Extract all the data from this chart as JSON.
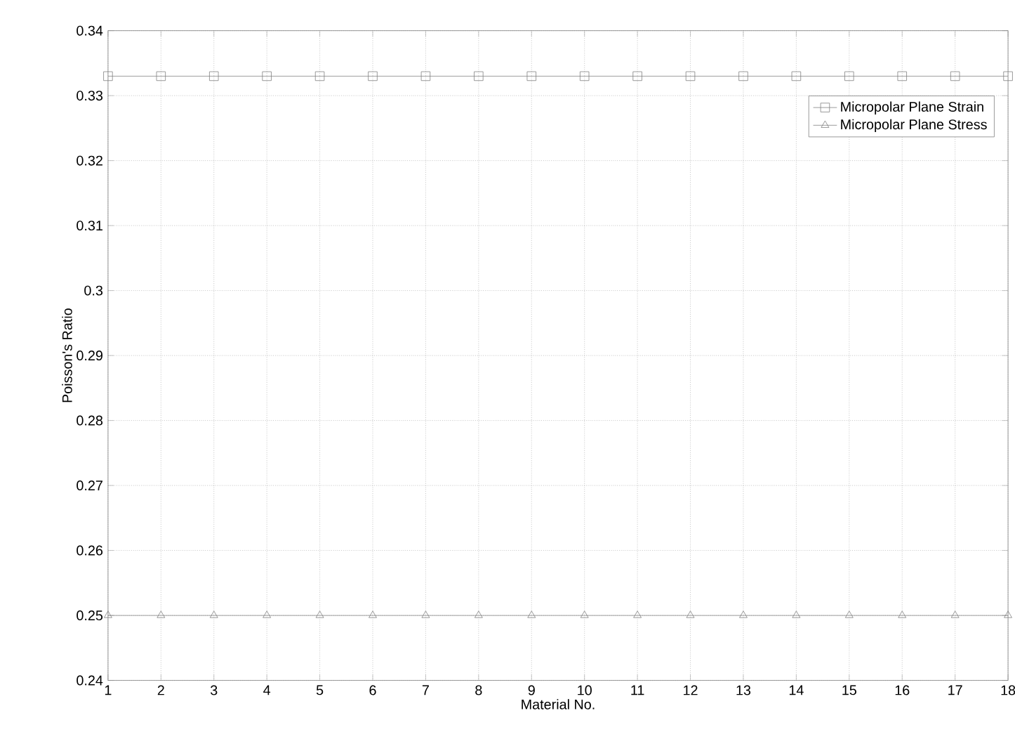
{
  "chart_data": {
    "type": "line",
    "xlabel": "Material No.",
    "ylabel": "Poisson's Ratio",
    "x": [
      1,
      2,
      3,
      4,
      5,
      6,
      7,
      8,
      9,
      10,
      11,
      12,
      13,
      14,
      15,
      16,
      17,
      18
    ],
    "series": [
      {
        "name": "Micropolar Plane Strain",
        "color": "#808080",
        "marker": "square",
        "values": [
          0.333,
          0.333,
          0.333,
          0.333,
          0.333,
          0.333,
          0.333,
          0.333,
          0.333,
          0.333,
          0.333,
          0.333,
          0.333,
          0.333,
          0.333,
          0.333,
          0.333,
          0.333
        ]
      },
      {
        "name": "Micropolar Plane Stress",
        "color": "#808080",
        "marker": "triangle",
        "values": [
          0.25,
          0.25,
          0.25,
          0.25,
          0.25,
          0.25,
          0.25,
          0.25,
          0.25,
          0.25,
          0.25,
          0.25,
          0.25,
          0.25,
          0.25,
          0.25,
          0.25,
          0.25
        ]
      }
    ],
    "xlim": [
      1,
      18
    ],
    "xticks": [
      1,
      2,
      3,
      4,
      5,
      6,
      7,
      8,
      9,
      10,
      11,
      12,
      13,
      14,
      15,
      16,
      17,
      18
    ],
    "ylim": [
      0.24,
      0.34
    ],
    "yticks": [
      0.24,
      0.25,
      0.26,
      0.27,
      0.28,
      0.29,
      0.3,
      0.31,
      0.32,
      0.33,
      0.34
    ],
    "grid": true,
    "legend": "top right",
    "line_style": "solid"
  }
}
